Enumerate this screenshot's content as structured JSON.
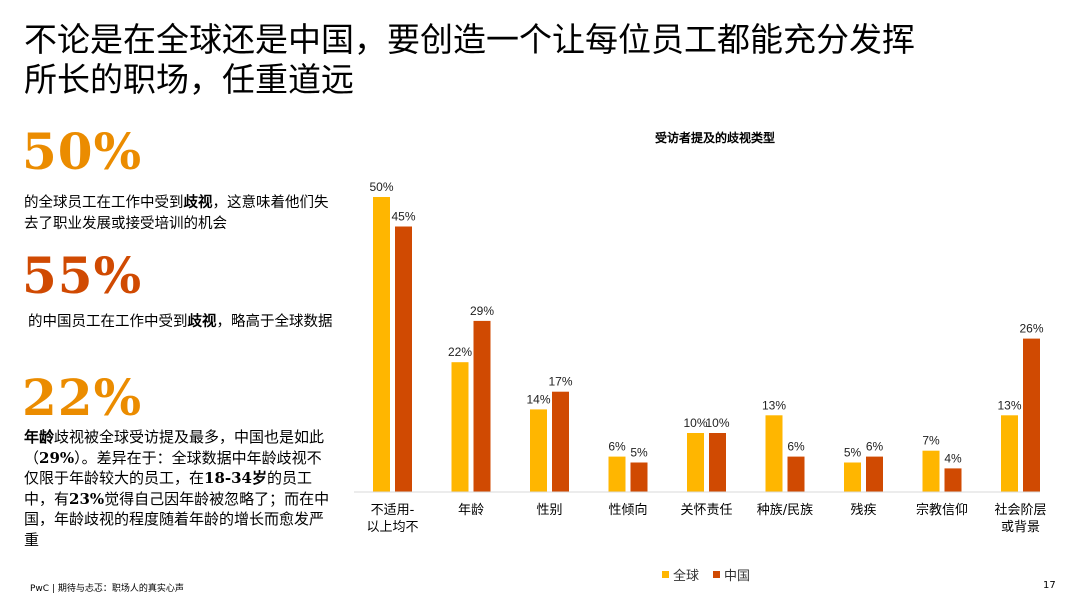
{
  "title_line1": "不论是在全球还是中国，要创造一个让每位员工都能充分发挥",
  "title_line2": "所长的职场，任重道远",
  "stats": [
    {
      "value": "50%",
      "desc_parts": [
        "的全球员工在工作中受到",
        "歧视",
        "，这意味着他们失去了职业发展或接受培训的机会"
      ]
    },
    {
      "value": "55%",
      "desc_parts": [
        "的中国员工在工作中受到",
        "歧视",
        "，略高于全球数据"
      ]
    },
    {
      "value": "22%",
      "desc_parts": [
        "年龄",
        "歧视被全球受访提及最多，中国也是如此（",
        "29%",
        "）。差异在于：全球数据中年龄歧视不仅限于年龄较大的员工，在",
        "18-34岁",
        "的员工中，有",
        "23%",
        "觉得自己因年龄被忽略了；而在中国，年龄歧视的程度随着年龄的增长而愈发严重"
      ]
    }
  ],
  "footer": "PwC | 期待与忐忑：职场人的真实心声",
  "page_number": "17",
  "colors": {
    "global": "#FFB600",
    "china": "#D04A02",
    "stat_orange": "#EB8C00",
    "stat_red": "#D04A02"
  },
  "chart_data": {
    "type": "bar",
    "title": "受访者提及的歧视类型",
    "categories": [
      "不适用-以上均不",
      "年龄",
      "性别",
      "性倾向",
      "关怀责任",
      "种族/民族",
      "残疾",
      "宗教信仰",
      "社会阶层或背景"
    ],
    "category_lines": [
      [
        "不适用-",
        "以上均不"
      ],
      [
        "年龄"
      ],
      [
        "性别"
      ],
      [
        "性倾向"
      ],
      [
        "关怀责任"
      ],
      [
        "种族/民族"
      ],
      [
        "残疾"
      ],
      [
        "宗教信仰"
      ],
      [
        "社会阶层",
        "或背景"
      ]
    ],
    "series": [
      {
        "name": "全球",
        "color": "#FFB600",
        "values": [
          50,
          22,
          14,
          6,
          10,
          13,
          5,
          7,
          13
        ]
      },
      {
        "name": "中国",
        "color": "#D04A02",
        "values": [
          45,
          29,
          17,
          5,
          10,
          6,
          6,
          4,
          26
        ]
      }
    ],
    "value_suffix": "%",
    "ylim": [
      0,
      50
    ],
    "grid": false,
    "legend": "bottom-center"
  }
}
